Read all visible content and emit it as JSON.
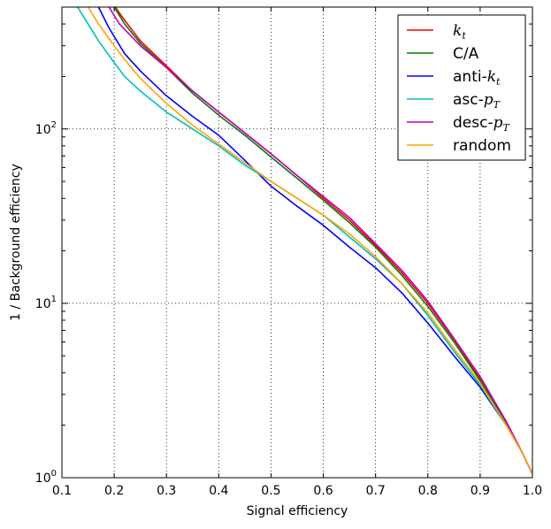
{
  "chart_data": {
    "type": "line",
    "title": "",
    "xlabel": "Signal efficiency",
    "ylabel": "1 / Background efficiency",
    "xlim": [
      0.1,
      1.0
    ],
    "ylim": [
      1,
      500
    ],
    "yscale": "log",
    "grid": true,
    "legend_position": "top-right",
    "x_ticks": [
      "0.1",
      "0.2",
      "0.3",
      "0.4",
      "0.5",
      "0.6",
      "0.7",
      "0.8",
      "0.9",
      "1.0"
    ],
    "y_ticks": [
      {
        "base": "10",
        "exp": "0"
      },
      {
        "base": "10",
        "exp": "1"
      },
      {
        "base": "10",
        "exp": "2"
      }
    ],
    "series": [
      {
        "name": "k_t",
        "legend_text": "k",
        "legend_sub": "t",
        "color": "#ff0000",
        "x": [
          0.2,
          0.22,
          0.25,
          0.3,
          0.35,
          0.4,
          0.45,
          0.5,
          0.55,
          0.6,
          0.65,
          0.7,
          0.75,
          0.8,
          0.85,
          0.9,
          0.95,
          0.98,
          1.0
        ],
        "y": [
          510,
          420,
          320,
          230,
          165,
          125,
          95,
          72,
          54,
          40,
          30,
          21.5,
          15,
          10,
          6.2,
          3.7,
          2.1,
          1.4,
          1.05
        ]
      },
      {
        "name": "C/A",
        "legend_text": "C/A",
        "color": "#007f00",
        "x": [
          0.2,
          0.22,
          0.25,
          0.3,
          0.35,
          0.4,
          0.45,
          0.5,
          0.55,
          0.6,
          0.65,
          0.7,
          0.75,
          0.8,
          0.85,
          0.9,
          0.95,
          0.98,
          1.0
        ],
        "y": [
          500,
          400,
          310,
          225,
          160,
          120,
          92,
          69,
          52,
          39,
          29,
          21,
          14.5,
          9.6,
          6.0,
          3.6,
          2.05,
          1.4,
          1.05
        ]
      },
      {
        "name": "anti-k_t",
        "legend_text": "anti-",
        "legend_math": "k",
        "legend_sub": "t",
        "color": "#0000ff",
        "x": [
          0.17,
          0.19,
          0.22,
          0.25,
          0.3,
          0.35,
          0.4,
          0.45,
          0.5,
          0.55,
          0.6,
          0.65,
          0.7,
          0.75,
          0.8,
          0.85,
          0.9,
          0.95,
          0.98,
          1.0
        ],
        "y": [
          500,
          380,
          270,
          215,
          155,
          118,
          92,
          66,
          47,
          36,
          28,
          21,
          16,
          11.5,
          7.7,
          5.0,
          3.3,
          2.0,
          1.4,
          1.05
        ]
      },
      {
        "name": "asc-p_T",
        "legend_text": "asc-",
        "legend_math": "p",
        "legend_sub": "T",
        "color": "#00bfbf",
        "x": [
          0.13,
          0.15,
          0.17,
          0.2,
          0.22,
          0.25,
          0.3,
          0.35,
          0.4,
          0.45,
          0.5,
          0.55,
          0.6,
          0.65,
          0.7,
          0.75,
          0.8,
          0.85,
          0.9,
          0.95,
          0.98,
          1.0
        ],
        "y": [
          500,
          400,
          320,
          240,
          200,
          165,
          125,
          100,
          80,
          62,
          50,
          40,
          32,
          24,
          18,
          13,
          8.5,
          5.3,
          3.4,
          2.0,
          1.4,
          1.05
        ]
      },
      {
        "name": "desc-p_T",
        "legend_text": "desc-",
        "legend_math": "p",
        "legend_sub": "T",
        "color": "#bf00bf",
        "x": [
          0.19,
          0.21,
          0.25,
          0.3,
          0.35,
          0.4,
          0.45,
          0.5,
          0.55,
          0.6,
          0.65,
          0.7,
          0.75,
          0.8,
          0.85,
          0.9,
          0.95,
          0.98,
          1.0
        ],
        "y": [
          500,
          400,
          300,
          225,
          165,
          125,
          95,
          72,
          54,
          41,
          31,
          22,
          15.5,
          10.3,
          6.3,
          3.8,
          2.1,
          1.4,
          1.05
        ]
      },
      {
        "name": "random",
        "legend_text": "random",
        "color": "#ffa500",
        "x": [
          0.15,
          0.17,
          0.2,
          0.22,
          0.25,
          0.3,
          0.35,
          0.4,
          0.45,
          0.5,
          0.55,
          0.6,
          0.65,
          0.7,
          0.75,
          0.8,
          0.85,
          0.9,
          0.95,
          0.98,
          1.0
        ],
        "y": [
          500,
          400,
          300,
          250,
          195,
          140,
          105,
          82,
          64,
          50,
          40,
          32,
          25,
          18.5,
          13,
          8.8,
          5.5,
          3.5,
          2.0,
          1.4,
          1.05
        ]
      }
    ]
  }
}
